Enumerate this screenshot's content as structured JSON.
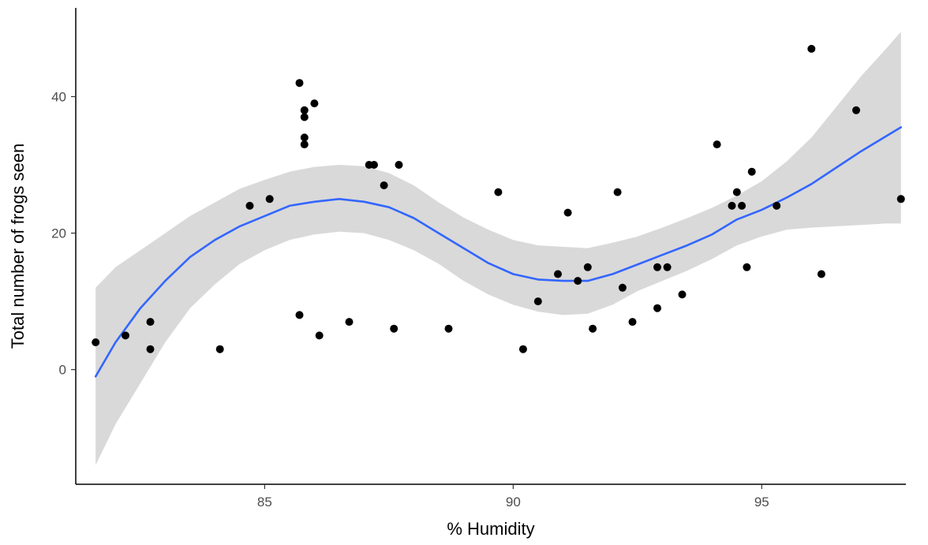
{
  "chart_data": {
    "type": "scatter",
    "title": "",
    "xlabel": "% Humidity",
    "ylabel": "Total number of frogs seen",
    "xlim": [
      81.2,
      97.9
    ],
    "ylim": [
      -16.8,
      53
    ],
    "x_ticks": [
      85,
      90,
      95
    ],
    "y_ticks": [
      0,
      20,
      40
    ],
    "grid": false,
    "legend": "none",
    "colors": {
      "points": "#000000",
      "smooth_line": "#3366FF",
      "ribbon": "#BFBFBF",
      "background": "#ffffff"
    },
    "series": [
      {
        "kind": "points",
        "points": [
          [
            81.6,
            4
          ],
          [
            82.2,
            5
          ],
          [
            82.7,
            7
          ],
          [
            82.7,
            3
          ],
          [
            84.1,
            3
          ],
          [
            84.7,
            24
          ],
          [
            85.1,
            25
          ],
          [
            85.7,
            42
          ],
          [
            85.7,
            8
          ],
          [
            85.8,
            38
          ],
          [
            85.8,
            37
          ],
          [
            85.8,
            34
          ],
          [
            85.8,
            33
          ],
          [
            86.0,
            39
          ],
          [
            86.1,
            5
          ],
          [
            86.7,
            7
          ],
          [
            87.1,
            30
          ],
          [
            87.2,
            30
          ],
          [
            87.4,
            27
          ],
          [
            87.6,
            6
          ],
          [
            87.7,
            30
          ],
          [
            88.7,
            6
          ],
          [
            89.7,
            26
          ],
          [
            90.2,
            3
          ],
          [
            90.5,
            10
          ],
          [
            90.9,
            14
          ],
          [
            91.1,
            23
          ],
          [
            91.3,
            13
          ],
          [
            91.5,
            15
          ],
          [
            91.6,
            6
          ],
          [
            92.1,
            26
          ],
          [
            92.2,
            12
          ],
          [
            92.4,
            7
          ],
          [
            92.9,
            9
          ],
          [
            92.9,
            15
          ],
          [
            93.1,
            15
          ],
          [
            93.4,
            11
          ],
          [
            94.1,
            33
          ],
          [
            94.4,
            24
          ],
          [
            94.5,
            26
          ],
          [
            94.6,
            24
          ],
          [
            94.7,
            15
          ],
          [
            94.8,
            29
          ],
          [
            95.3,
            24
          ],
          [
            96.0,
            47
          ],
          [
            96.2,
            14
          ],
          [
            96.9,
            38
          ],
          [
            97.8,
            25
          ]
        ]
      },
      {
        "kind": "smooth",
        "fit": [
          [
            81.6,
            -1
          ],
          [
            82.0,
            4
          ],
          [
            82.5,
            9
          ],
          [
            83.0,
            13
          ],
          [
            83.5,
            16.5
          ],
          [
            84.0,
            19
          ],
          [
            84.5,
            21
          ],
          [
            85.0,
            22.5
          ],
          [
            85.5,
            24
          ],
          [
            86.0,
            24.6
          ],
          [
            86.5,
            25
          ],
          [
            87.0,
            24.6
          ],
          [
            87.5,
            23.8
          ],
          [
            88.0,
            22.2
          ],
          [
            88.5,
            20
          ],
          [
            89.0,
            17.8
          ],
          [
            89.5,
            15.6
          ],
          [
            90.0,
            14
          ],
          [
            90.5,
            13.2
          ],
          [
            91.0,
            13
          ],
          [
            91.5,
            13
          ],
          [
            92.0,
            14
          ],
          [
            92.5,
            15.4
          ],
          [
            93.0,
            16.8
          ],
          [
            93.5,
            18.2
          ],
          [
            94.0,
            19.8
          ],
          [
            94.5,
            22
          ],
          [
            95.0,
            23.4
          ],
          [
            95.5,
            25.2
          ],
          [
            96.0,
            27.2
          ],
          [
            96.5,
            29.6
          ],
          [
            97.0,
            32
          ],
          [
            97.5,
            34.2
          ],
          [
            97.8,
            35.5
          ]
        ],
        "lower": [
          [
            81.6,
            -14
          ],
          [
            82.0,
            -8
          ],
          [
            82.5,
            -2
          ],
          [
            83.0,
            4
          ],
          [
            83.5,
            9
          ],
          [
            84.0,
            12.5
          ],
          [
            84.5,
            15.5
          ],
          [
            85.0,
            17.5
          ],
          [
            85.5,
            19
          ],
          [
            86.0,
            19.8
          ],
          [
            86.5,
            20.2
          ],
          [
            87.0,
            20
          ],
          [
            87.5,
            19
          ],
          [
            88.0,
            17.5
          ],
          [
            88.5,
            15.5
          ],
          [
            89.0,
            13
          ],
          [
            89.5,
            11
          ],
          [
            90.0,
            9.5
          ],
          [
            90.5,
            8.5
          ],
          [
            91.0,
            8
          ],
          [
            91.5,
            8.2
          ],
          [
            92.0,
            9.5
          ],
          [
            92.5,
            11.5
          ],
          [
            93.0,
            13
          ],
          [
            93.5,
            14.5
          ],
          [
            94.0,
            16.2
          ],
          [
            94.5,
            18.2
          ],
          [
            95.0,
            19.5
          ],
          [
            95.5,
            20.5
          ],
          [
            96.0,
            20.8
          ],
          [
            96.5,
            21
          ],
          [
            97.0,
            21.2
          ],
          [
            97.5,
            21.4
          ],
          [
            97.8,
            21.4
          ]
        ],
        "upper": [
          [
            81.6,
            12
          ],
          [
            82.0,
            15
          ],
          [
            82.5,
            17.5
          ],
          [
            83.0,
            20
          ],
          [
            83.5,
            22.5
          ],
          [
            84.0,
            24.5
          ],
          [
            84.5,
            26.5
          ],
          [
            85.0,
            27.8
          ],
          [
            85.5,
            29
          ],
          [
            86.0,
            29.7
          ],
          [
            86.5,
            30
          ],
          [
            87.0,
            29.8
          ],
          [
            87.5,
            28.8
          ],
          [
            88.0,
            27
          ],
          [
            88.5,
            24.5
          ],
          [
            89.0,
            22.3
          ],
          [
            89.5,
            20.5
          ],
          [
            90.0,
            19
          ],
          [
            90.5,
            18.2
          ],
          [
            91.0,
            18
          ],
          [
            91.5,
            17.8
          ],
          [
            92.0,
            18.6
          ],
          [
            92.5,
            19.5
          ],
          [
            93.0,
            20.8
          ],
          [
            93.5,
            22.2
          ],
          [
            94.0,
            23.7
          ],
          [
            94.5,
            25.5
          ],
          [
            95.0,
            27.6
          ],
          [
            95.5,
            30.5
          ],
          [
            96.0,
            34
          ],
          [
            96.5,
            38.5
          ],
          [
            97.0,
            43
          ],
          [
            97.5,
            47
          ],
          [
            97.8,
            49.5
          ]
        ]
      }
    ]
  }
}
